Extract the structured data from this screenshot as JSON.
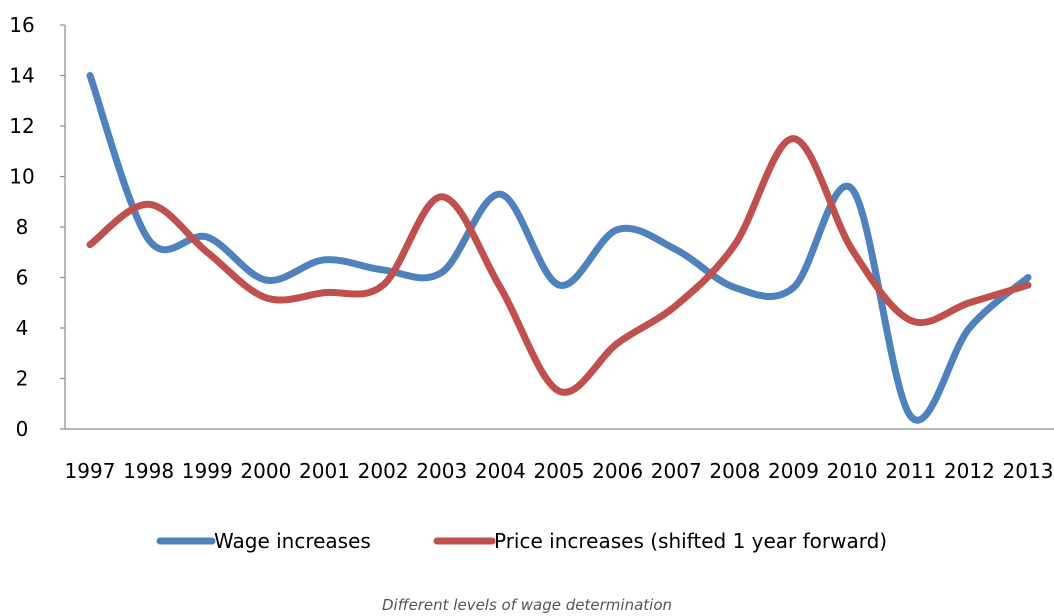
{
  "caption": "Different levels of wage determination",
  "chart_data": {
    "type": "line",
    "title": "",
    "xlabel": "",
    "ylabel": "",
    "categories": [
      "1997",
      "1998",
      "1999",
      "2000",
      "2001",
      "2002",
      "2003",
      "2004",
      "2005",
      "2006",
      "2007",
      "2008",
      "2009",
      "2010",
      "2011",
      "2012",
      "2013"
    ],
    "ylim": [
      0,
      16
    ],
    "yticks": [
      0,
      2,
      4,
      6,
      8,
      10,
      12,
      14,
      16
    ],
    "grid": false,
    "legend_position": "bottom",
    "series": [
      {
        "name": "Wage increases",
        "color": "#4F81BD",
        "values": [
          14.0,
          7.5,
          7.6,
          5.9,
          6.7,
          6.3,
          6.2,
          9.3,
          5.7,
          7.9,
          7.1,
          5.6,
          5.6,
          9.5,
          0.5,
          4.0,
          6.0
        ]
      },
      {
        "name": "Price increases (shifted 1 year forward)",
        "color": "#C0504D",
        "values": [
          7.3,
          8.9,
          7.0,
          5.2,
          5.4,
          5.7,
          9.2,
          5.6,
          1.5,
          3.4,
          4.9,
          7.3,
          11.5,
          7.1,
          4.3,
          5.0,
          5.7
        ]
      }
    ]
  }
}
